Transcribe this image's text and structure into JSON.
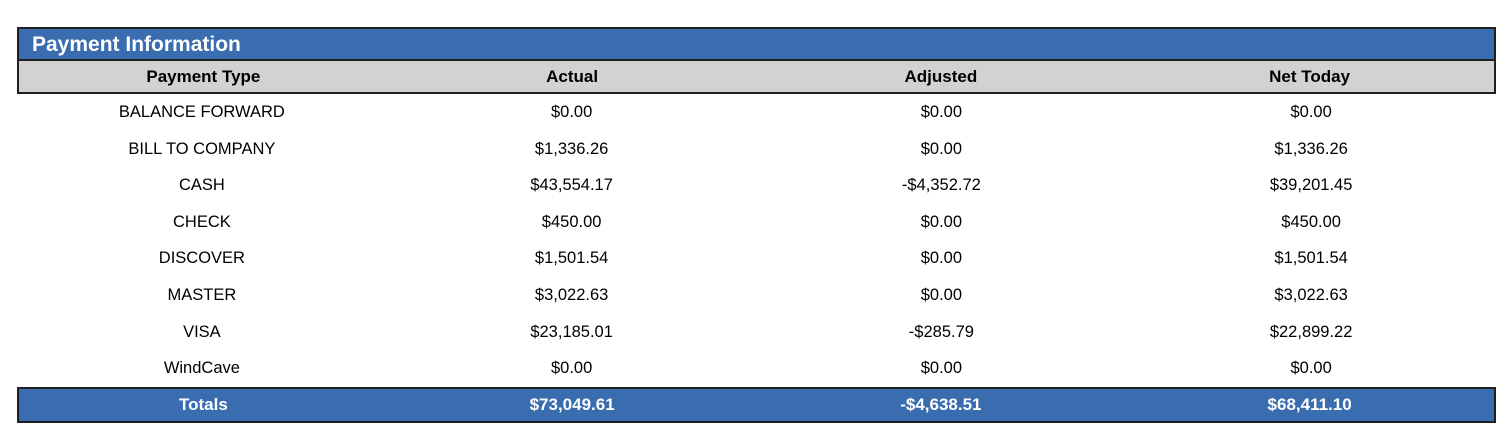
{
  "title": "Payment Information",
  "columns": [
    "Payment Type",
    "Actual",
    "Adjusted",
    "Net Today"
  ],
  "rows": [
    {
      "type": "BALANCE FORWARD",
      "actual": "$0.00",
      "adjusted": "$0.00",
      "net": "$0.00"
    },
    {
      "type": "BILL TO COMPANY",
      "actual": "$1,336.26",
      "adjusted": "$0.00",
      "net": "$1,336.26"
    },
    {
      "type": "CASH",
      "actual": "$43,554.17",
      "adjusted": "-$4,352.72",
      "net": "$39,201.45"
    },
    {
      "type": "CHECK",
      "actual": "$450.00",
      "adjusted": "$0.00",
      "net": "$450.00"
    },
    {
      "type": "DISCOVER",
      "actual": "$1,501.54",
      "adjusted": "$0.00",
      "net": "$1,501.54"
    },
    {
      "type": "MASTER",
      "actual": "$3,022.63",
      "adjusted": "$0.00",
      "net": "$3,022.63"
    },
    {
      "type": "VISA",
      "actual": "$23,185.01",
      "adjusted": "-$285.79",
      "net": "$22,899.22"
    },
    {
      "type": "WindCave",
      "actual": "$0.00",
      "adjusted": "$0.00",
      "net": "$0.00"
    }
  ],
  "totals": {
    "label": "Totals",
    "actual": "$73,049.61",
    "adjusted": "-$4,638.51",
    "net": "$68,411.10"
  },
  "colors": {
    "header_blue": "#3a6cb0",
    "header_gray": "#d2d2d2",
    "border_dark": "#1f1f1f",
    "title_text": "#ffffff"
  }
}
